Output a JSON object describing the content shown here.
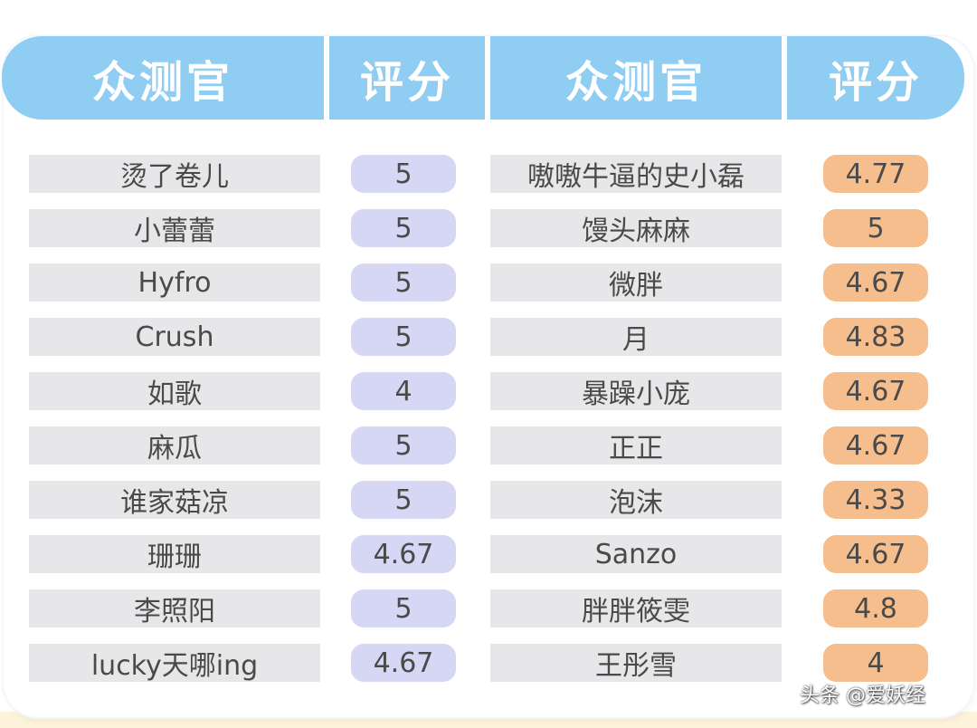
{
  "header": {
    "col1": "众测官",
    "col2": "评分",
    "col3": "众测官",
    "col4": "评分"
  },
  "left_rows": [
    {
      "name": "烫了卷儿",
      "score": "5"
    },
    {
      "name": "小蕾蕾",
      "score": "5"
    },
    {
      "name": "Hyfro",
      "score": "5"
    },
    {
      "name": "Crush",
      "score": "5"
    },
    {
      "name": "如歌",
      "score": "4"
    },
    {
      "name": "麻瓜",
      "score": "5"
    },
    {
      "name": "谁家菇凉",
      "score": "5"
    },
    {
      "name": "珊珊",
      "score": "4.67"
    },
    {
      "name": "李照阳",
      "score": "5"
    },
    {
      "name": "lucky天哪ing",
      "score": "4.67"
    }
  ],
  "right_rows": [
    {
      "name": "嗷嗷牛逼的史小磊",
      "score": "4.77"
    },
    {
      "name": "馒头麻麻",
      "score": "5"
    },
    {
      "name": "微胖",
      "score": "4.67"
    },
    {
      "name": "月",
      "score": "4.83"
    },
    {
      "name": "暴躁小庞",
      "score": "4.67"
    },
    {
      "name": "正正",
      "score": "4.67"
    },
    {
      "name": "泡沫",
      "score": "4.33"
    },
    {
      "name": "Sanzo",
      "score": "4.67"
    },
    {
      "name": "胖胖筱雯",
      "score": "4.8"
    },
    {
      "name": "王彤雪",
      "score": "4"
    }
  ],
  "watermark": "头条 @爱妖经",
  "colors": {
    "header": "#8fcdf2",
    "name_cell": "#e7e7e9",
    "left_score": "#d6d7f4",
    "right_score": "#f6be8c"
  }
}
